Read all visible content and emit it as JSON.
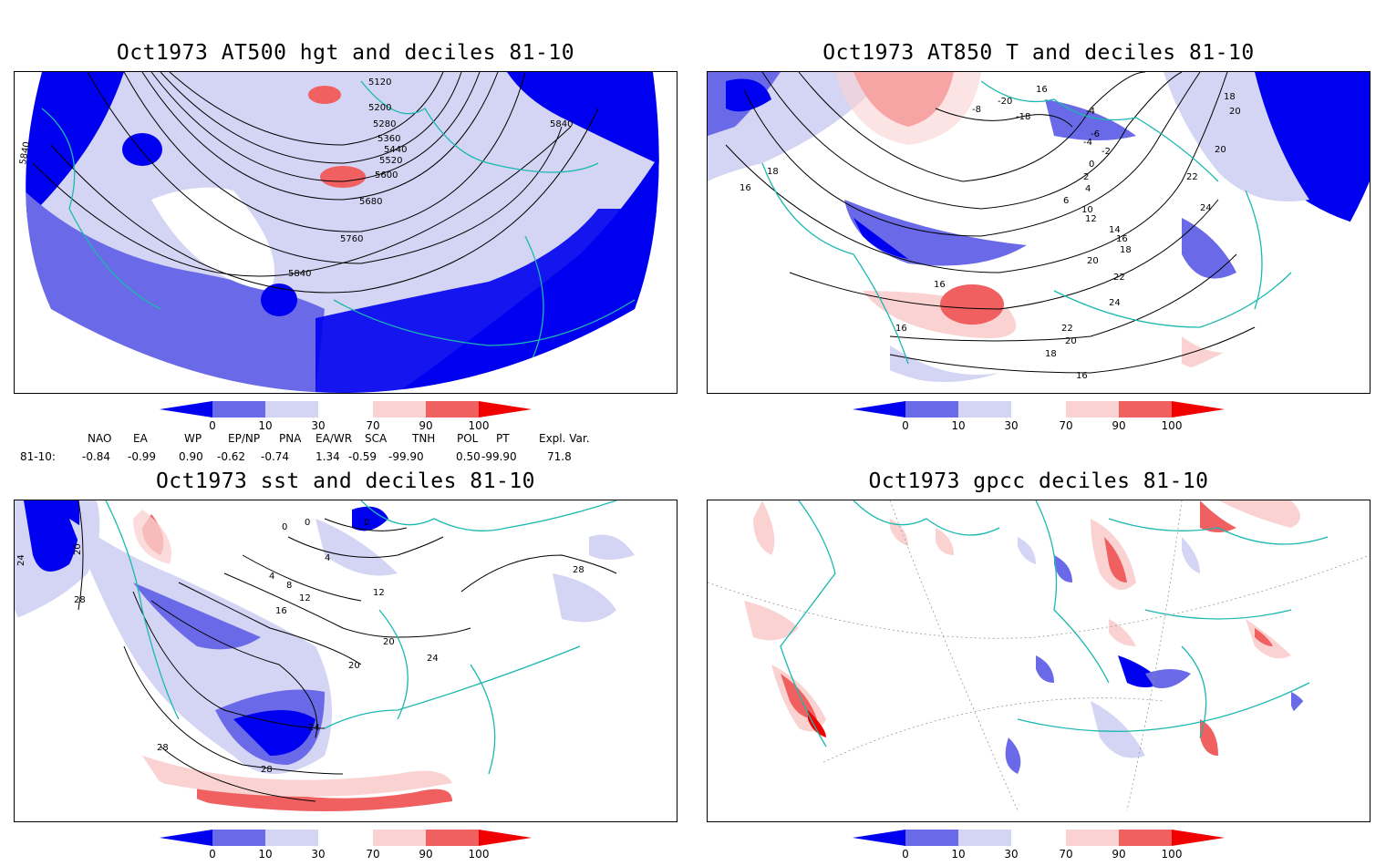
{
  "panels": [
    {
      "title": "Oct1973 AT500 hgt and deciles 81-10",
      "contour_labels": [
        "5120",
        "5200",
        "5280",
        "5360",
        "5440",
        "5520",
        "5600",
        "5680",
        "5760",
        "5840",
        "5840",
        "5840"
      ]
    },
    {
      "title": "Oct1973 AT850 T and deciles 81-10",
      "contour_labels": [
        "16",
        "-20",
        "-18",
        "-8",
        "-4",
        "-6",
        "-4",
        "-2",
        "0",
        "2",
        "4",
        "6",
        "10",
        "12",
        "14",
        "16",
        "18",
        "20",
        "22",
        "24",
        "18",
        "16",
        "16",
        "22",
        "20",
        "18",
        "16",
        "16",
        "18",
        "20",
        "20",
        "22",
        "24"
      ]
    },
    {
      "title": "Oct1973 sst and deciles 81-10",
      "contour_labels": [
        "0",
        "0",
        "0",
        "4",
        "4",
        "8",
        "12",
        "12",
        "16",
        "20",
        "20",
        "24",
        "24",
        "28",
        "28",
        "28",
        "28",
        "24",
        "20"
      ]
    },
    {
      "title": "Oct1973 gpcc deciles 81-10",
      "contour_labels": []
    }
  ],
  "colorbar": {
    "ticks": [
      "0",
      "10",
      "30",
      "70",
      "90",
      "100"
    ],
    "colors": [
      "#0000f0",
      "#6a6ae8",
      "#d4d4f4",
      "#ffffff",
      "#fad2d2",
      "#f06060",
      "#f00000"
    ]
  },
  "indices": {
    "headers": [
      "NAO",
      "EA",
      "WP",
      "EP/NP",
      "PNA",
      "EA/WR",
      "SCA",
      "TNH",
      "POL",
      "PT",
      "Expl. Var."
    ],
    "row_label": "81-10:",
    "values": [
      "-0.84",
      "-0.99",
      "0.90",
      "-0.62",
      "-0.74",
      "1.34",
      "-0.59",
      "-99.90",
      "0.50",
      "-99.90",
      "71.8"
    ]
  }
}
